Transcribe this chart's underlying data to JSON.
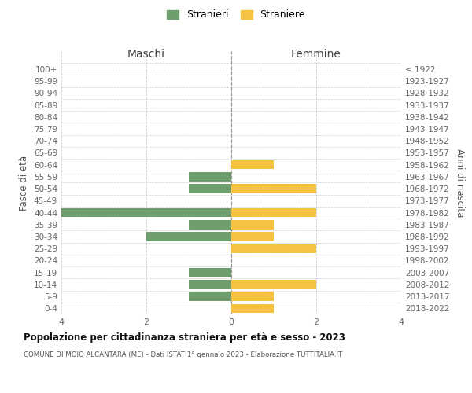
{
  "age_groups": [
    "0-4",
    "5-9",
    "10-14",
    "15-19",
    "20-24",
    "25-29",
    "30-34",
    "35-39",
    "40-44",
    "45-49",
    "50-54",
    "55-59",
    "60-64",
    "65-69",
    "70-74",
    "75-79",
    "80-84",
    "85-89",
    "90-94",
    "95-99",
    "100+"
  ],
  "birth_years": [
    "2018-2022",
    "2013-2017",
    "2008-2012",
    "2003-2007",
    "1998-2002",
    "1993-1997",
    "1988-1992",
    "1983-1987",
    "1978-1982",
    "1973-1977",
    "1968-1972",
    "1963-1967",
    "1958-1962",
    "1953-1957",
    "1948-1952",
    "1943-1947",
    "1938-1942",
    "1933-1937",
    "1928-1932",
    "1923-1927",
    "≤ 1922"
  ],
  "males": [
    0,
    1,
    1,
    1,
    0,
    0,
    2,
    1,
    4,
    0,
    1,
    1,
    0,
    0,
    0,
    0,
    0,
    0,
    0,
    0,
    0
  ],
  "females": [
    1,
    1,
    2,
    0,
    0,
    2,
    1,
    1,
    2,
    0,
    2,
    0,
    1,
    0,
    0,
    0,
    0,
    0,
    0,
    0,
    0
  ],
  "male_color": "#6e9e6e",
  "female_color": "#f5c242",
  "title": "Popolazione per cittadinanza straniera per età e sesso - 2023",
  "subtitle": "COMUNE DI MOIO ALCANTARA (ME) - Dati ISTAT 1° gennaio 2023 - Elaborazione TUTTITALIA.IT",
  "xlabel_left": "Maschi",
  "xlabel_right": "Femmine",
  "ylabel_left": "Fasce di età",
  "ylabel_right": "Anni di nascita",
  "legend_male": "Stranieri",
  "legend_female": "Straniere",
  "xlim": 4,
  "background_color": "#ffffff",
  "grid_color": "#d0d0d0"
}
